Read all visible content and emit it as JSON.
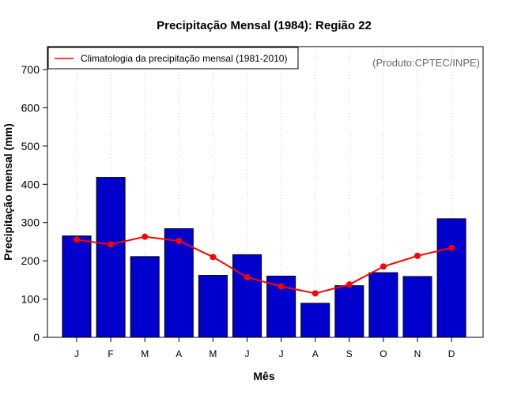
{
  "colors": {
    "bar_fill": "#0000cc",
    "bar_stroke": "#000000",
    "line": "#ff0000",
    "grid": "#cccccc",
    "credit": "#666666"
  },
  "chart_data": {
    "type": "bar",
    "title": "Precipitação Mensal (1984): Região 22",
    "xlabel": "Mês",
    "ylabel": "Precipitação mensal (mm)",
    "categories": [
      "J",
      "F",
      "M",
      "A",
      "M",
      "J",
      "J",
      "A",
      "S",
      "O",
      "N",
      "D"
    ],
    "ylim": [
      0,
      760
    ],
    "yticks": [
      0,
      100,
      200,
      300,
      400,
      500,
      600,
      700
    ],
    "grid": "vertical dotted",
    "series": [
      {
        "name": "Precipitação mensal (1984)",
        "kind": "bar",
        "values": [
          265,
          418,
          211,
          284,
          162,
          216,
          160,
          89,
          135,
          169,
          159,
          310
        ]
      },
      {
        "name": "Climatologia da precipitação mensal (1981-2010)",
        "kind": "line",
        "values": [
          255,
          243,
          263,
          252,
          210,
          157,
          133,
          115,
          138,
          185,
          213,
          234
        ]
      }
    ],
    "legend": {
      "position": "top-left",
      "label": "Climatologia da precipitação mensal (1981-2010)"
    },
    "annotation": "(Produto:CPTEC/INPE)"
  }
}
